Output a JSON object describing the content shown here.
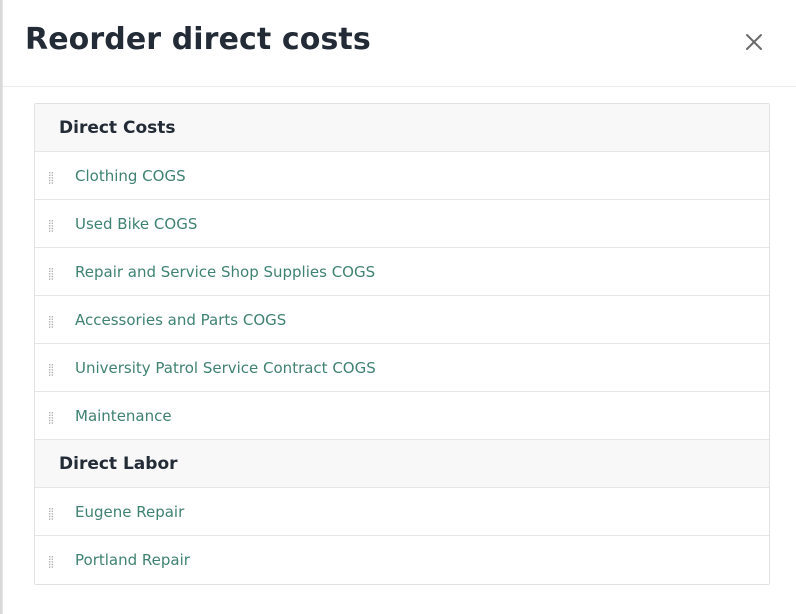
{
  "modal": {
    "title": "Reorder direct costs",
    "close_icon": "close-icon"
  },
  "groups": [
    {
      "title": "Direct Costs",
      "items": [
        {
          "label": "Clothing COGS"
        },
        {
          "label": "Used Bike COGS"
        },
        {
          "label": "Repair and Service Shop Supplies COGS"
        },
        {
          "label": "Accessories and Parts COGS"
        },
        {
          "label": "University Patrol Service Contract COGS"
        },
        {
          "label": "Maintenance"
        }
      ]
    },
    {
      "title": "Direct Labor",
      "items": [
        {
          "label": "Eugene Repair"
        },
        {
          "label": "Portland Repair"
        }
      ]
    }
  ],
  "colors": {
    "title": "#222b36",
    "item_text": "#3f8271",
    "group_header_bg": "#f8f8f8",
    "border": "#e6e6e6"
  },
  "icons": {
    "drag": "drag-handle-icon",
    "close": "close-icon"
  }
}
